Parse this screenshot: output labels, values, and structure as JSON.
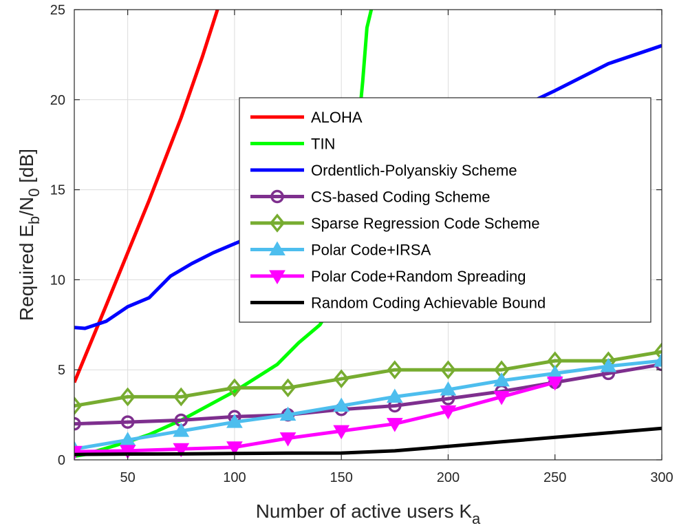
{
  "chart_data": {
    "type": "line",
    "title": "",
    "xlabel": "Number of active users K",
    "xlabel_sub": "a",
    "ylabel_parts": [
      "Required E",
      "b",
      "/N",
      "0",
      " [dB]"
    ],
    "xlim": [
      25,
      300
    ],
    "ylim": [
      0,
      25
    ],
    "xticks": [
      50,
      100,
      150,
      200,
      250,
      300
    ],
    "yticks": [
      0,
      5,
      10,
      15,
      20,
      25
    ],
    "grid": true,
    "legend_position": "upper-right",
    "series": [
      {
        "name": "ALOHA",
        "color": "#ff0000",
        "marker": "none",
        "x": [
          25,
          40,
          50,
          60,
          75,
          85,
          92
        ],
        "y": [
          4.3,
          8.6,
          11.5,
          14.4,
          19.0,
          22.4,
          25.0
        ]
      },
      {
        "name": "TIN",
        "color": "#00ff00",
        "marker": "none",
        "x": [
          25,
          30,
          40,
          50,
          60,
          75,
          100,
          120,
          130,
          140,
          145,
          150,
          155,
          158,
          160,
          162,
          164
        ],
        "y": [
          0.2,
          0.3,
          0.65,
          1.0,
          1.4,
          2.2,
          3.8,
          5.3,
          6.5,
          7.5,
          8.5,
          10.0,
          14.0,
          18.5,
          21.0,
          24.0,
          25.0
        ]
      },
      {
        "name": "Ordentlich-Polyanskiy Scheme",
        "color": "#0000ff",
        "marker": "none",
        "x": [
          25,
          30,
          40,
          50,
          60,
          70,
          80,
          90,
          100,
          110,
          120,
          250,
          275,
          300
        ],
        "y": [
          7.35,
          7.3,
          7.7,
          8.5,
          9.0,
          10.2,
          10.9,
          11.5,
          12.0,
          12.5,
          13.2,
          20.5,
          22.0,
          23.0
        ]
      },
      {
        "name": "CS-based Coding Scheme",
        "color": "#7e2f8e",
        "marker": "circle",
        "x": [
          25,
          50,
          75,
          100,
          125,
          150,
          175,
          200,
          225,
          250,
          275,
          300
        ],
        "y": [
          2.0,
          2.1,
          2.2,
          2.4,
          2.5,
          2.8,
          3.0,
          3.4,
          3.8,
          4.3,
          4.8,
          5.3
        ]
      },
      {
        "name": "Sparse Regression Code Scheme",
        "color": "#77ac30",
        "marker": "diamond",
        "x": [
          25,
          50,
          75,
          100,
          125,
          150,
          175,
          200,
          225,
          250,
          275,
          300
        ],
        "y": [
          3.0,
          3.5,
          3.5,
          4.0,
          4.0,
          4.5,
          5.0,
          5.0,
          5.0,
          5.5,
          5.5,
          6.0
        ]
      },
      {
        "name": "Polar Code+IRSA",
        "color": "#4dbeee",
        "marker": "triangle-up",
        "x": [
          25,
          50,
          75,
          100,
          125,
          150,
          175,
          200,
          225,
          250,
          275,
          300
        ],
        "y": [
          0.6,
          1.1,
          1.6,
          2.1,
          2.5,
          3.0,
          3.5,
          3.9,
          4.4,
          4.8,
          5.2,
          5.5
        ]
      },
      {
        "name": "Polar Code+Random Spreading",
        "color": "#ff00ff",
        "marker": "triangle-down",
        "x": [
          25,
          50,
          75,
          100,
          125,
          150,
          175,
          200,
          225,
          250
        ],
        "y": [
          0.45,
          0.5,
          0.6,
          0.7,
          1.2,
          1.6,
          2.0,
          2.7,
          3.5,
          4.3
        ]
      },
      {
        "name": "Random Coding Achievable Bound",
        "color": "#000000",
        "marker": "none",
        "x": [
          25,
          50,
          75,
          100,
          125,
          150,
          175,
          200,
          225,
          250,
          275,
          300
        ],
        "y": [
          0.3,
          0.32,
          0.33,
          0.35,
          0.37,
          0.38,
          0.5,
          0.75,
          1.0,
          1.25,
          1.5,
          1.75
        ]
      }
    ]
  }
}
